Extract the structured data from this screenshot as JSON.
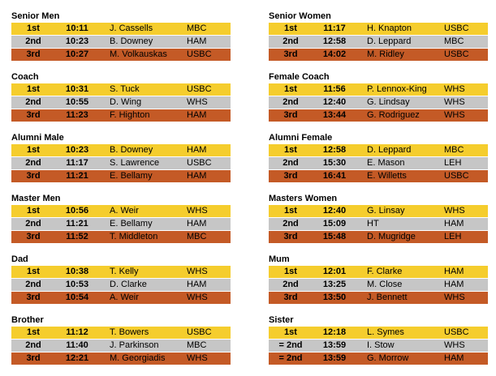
{
  "left": [
    {
      "title": "Senior Men",
      "rows": [
        {
          "place": "1st",
          "time": "10:11",
          "name": "J. Cassells",
          "club": "MBC"
        },
        {
          "place": "2nd",
          "time": "10:23",
          "name": "B. Downey",
          "club": "HAM"
        },
        {
          "place": "3rd",
          "time": "10:27",
          "name": "M. Volkauskas",
          "club": "USBC"
        }
      ]
    },
    {
      "title": "Coach",
      "rows": [
        {
          "place": "1st",
          "time": "10:31",
          "name": "S. Tuck",
          "club": "USBC"
        },
        {
          "place": "2nd",
          "time": "10:55",
          "name": "D. Wing",
          "club": "WHS"
        },
        {
          "place": "3rd",
          "time": "11:23",
          "name": "F. Highton",
          "club": "HAM"
        }
      ]
    },
    {
      "title": "Alumni Male",
      "rows": [
        {
          "place": "1st",
          "time": "10:23",
          "name": "B. Downey",
          "club": "HAM"
        },
        {
          "place": "2nd",
          "time": "11:17",
          "name": "S. Lawrence",
          "club": "USBC"
        },
        {
          "place": "3rd",
          "time": "11:21",
          "name": "E. Bellamy",
          "club": "HAM"
        }
      ]
    },
    {
      "title": "Master Men",
      "rows": [
        {
          "place": "1st",
          "time": "10:56",
          "name": "A. Weir",
          "club": "WHS"
        },
        {
          "place": "2nd",
          "time": "11:21",
          "name": "E. Bellamy",
          "club": "HAM"
        },
        {
          "place": "3rd",
          "time": "11:52",
          "name": "T. Middleton",
          "club": "MBC"
        }
      ]
    },
    {
      "title": "Dad",
      "rows": [
        {
          "place": "1st",
          "time": "10:38",
          "name": "T. Kelly",
          "club": "WHS"
        },
        {
          "place": "2nd",
          "time": "10:53",
          "name": "D. Clarke",
          "club": "HAM"
        },
        {
          "place": "3rd",
          "time": "10:54",
          "name": "A. Weir",
          "club": "WHS"
        }
      ]
    },
    {
      "title": "Brother",
      "rows": [
        {
          "place": "1st",
          "time": "11:12",
          "name": "T. Bowers",
          "club": "USBC"
        },
        {
          "place": "2nd",
          "time": "11:40",
          "name": "J. Parkinson",
          "club": "MBC"
        },
        {
          "place": "3rd",
          "time": "12:21",
          "name": "M. Georgiadis",
          "club": "WHS"
        }
      ]
    }
  ],
  "right": [
    {
      "title": "Senior Women",
      "rows": [
        {
          "place": "1st",
          "time": "11:17",
          "name": "H. Knapton",
          "club": "USBC"
        },
        {
          "place": "2nd",
          "time": "12:58",
          "name": "D. Leppard",
          "club": "MBC"
        },
        {
          "place": "3rd",
          "time": "14:02",
          "name": "M. Ridley",
          "club": "USBC"
        }
      ]
    },
    {
      "title": "Female Coach",
      "rows": [
        {
          "place": "1st",
          "time": "11:56",
          "name": "P. Lennox-King",
          "club": "WHS"
        },
        {
          "place": "2nd",
          "time": "12:40",
          "name": "G. Lindsay",
          "club": "WHS"
        },
        {
          "place": "3rd",
          "time": "13:44",
          "name": "G. Rodriguez",
          "club": "WHS"
        }
      ]
    },
    {
      "title": "Alumni Female",
      "rows": [
        {
          "place": "1st",
          "time": "12:58",
          "name": "D. Leppard",
          "club": "MBC"
        },
        {
          "place": "2nd",
          "time": "15:30",
          "name": "E. Mason",
          "club": "LEH"
        },
        {
          "place": "3rd",
          "time": "16:41",
          "name": "E. Willetts",
          "club": "USBC"
        }
      ]
    },
    {
      "title": "Masters Women",
      "rows": [
        {
          "place": "1st",
          "time": "12:40",
          "name": "G. Linsay",
          "club": "WHS"
        },
        {
          "place": "2nd",
          "time": "15:09",
          "name": "HT",
          "club": "HAM"
        },
        {
          "place": "3rd",
          "time": "15:48",
          "name": "D. Mugridge",
          "club": "LEH"
        }
      ]
    },
    {
      "title": "Mum",
      "rows": [
        {
          "place": "1st",
          "time": "12:01",
          "name": "F. Clarke",
          "club": "HAM"
        },
        {
          "place": "2nd",
          "time": "13:25",
          "name": "M. Close",
          "club": "HAM"
        },
        {
          "place": "3rd",
          "time": "13:50",
          "name": "J. Bennett",
          "club": "WHS"
        }
      ]
    },
    {
      "title": "Sister",
      "rows": [
        {
          "place": "1st",
          "time": "12:18",
          "name": "L. Symes",
          "club": "USBC"
        },
        {
          "place": "= 2nd",
          "time": "13:59",
          "name": "I. Stow",
          "club": "WHS"
        },
        {
          "place": "= 2nd",
          "time": "13:59",
          "name": "G. Morrow",
          "club": "HAM"
        }
      ]
    }
  ],
  "colors": {
    "first": "#f5cd2d",
    "second": "#c6c6c6",
    "third": "#c45a26"
  }
}
